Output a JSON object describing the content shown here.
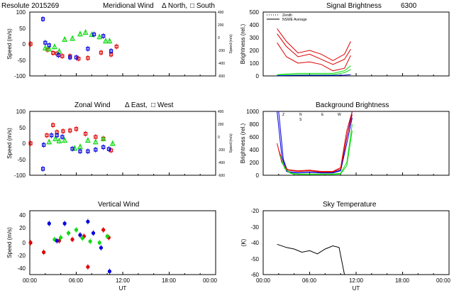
{
  "colors": {
    "red": "#e00000",
    "green": "#10dc10",
    "blue": "#0000e0",
    "black": "#000000"
  },
  "chart_data": [
    {
      "id": "meridional",
      "type": "scatter",
      "title_left": "Resolute  2015269",
      "title": "Meridional Wind",
      "legend_a": "Δ North,",
      "legend_b": "□ South",
      "ylabel": "Speed (m/s)",
      "ylabel_right": "Speed (m/s)",
      "ylim": [
        -100,
        100
      ],
      "yticks": [
        "100",
        "50",
        "0",
        "-50",
        "-100"
      ],
      "yticks_right": [
        "400",
        "200",
        "0",
        "-200",
        "-400",
        "-600"
      ],
      "xlim": [
        0,
        24
      ],
      "series": [
        {
          "color": "red",
          "marker": "square",
          "points": [
            [
              0.1,
              0
            ],
            [
              2.3,
              -18
            ],
            [
              3.0,
              -28
            ],
            [
              3.5,
              -30
            ],
            [
              4.2,
              -38
            ],
            [
              5.2,
              -38
            ],
            [
              6.3,
              -46
            ],
            [
              7.5,
              -44
            ],
            [
              9.2,
              -27
            ],
            [
              10.5,
              -33
            ],
            [
              11.2,
              -8
            ]
          ]
        },
        {
          "color": "green",
          "marker": "triangle",
          "points": [
            [
              2.0,
              -12
            ],
            [
              2.5,
              -15
            ],
            [
              3.2,
              -8
            ],
            [
              3.8,
              -22
            ],
            [
              4.5,
              15
            ],
            [
              5.5,
              18
            ],
            [
              6.5,
              32
            ],
            [
              7.2,
              37
            ],
            [
              8.0,
              30
            ],
            [
              9.0,
              23
            ],
            [
              9.8,
              10
            ],
            [
              10.3,
              10
            ]
          ]
        },
        {
          "color": "blue",
          "marker": "square",
          "points": [
            [
              1.7,
              78
            ],
            [
              2.0,
              4
            ],
            [
              2.5,
              -4
            ],
            [
              3.7,
              -35
            ],
            [
              5.2,
              -42
            ],
            [
              6.0,
              -42
            ],
            [
              7.5,
              -15
            ],
            [
              8.3,
              30
            ],
            [
              9.5,
              25
            ],
            [
              10.5,
              -22
            ]
          ]
        }
      ]
    },
    {
      "id": "signal",
      "type": "line",
      "title": "Signal Brightness",
      "title_right": "6300",
      "ylabel": "Brightness (rel.)",
      "legend": [
        "Zenith",
        "NSWE Average"
      ],
      "ylim": [
        0,
        500
      ],
      "yticks": [
        "500",
        "400",
        "300",
        "200",
        "100",
        "0"
      ],
      "xlim": [
        0,
        24
      ],
      "series": [
        {
          "color": "red",
          "x": [
            1.8,
            3.0,
            4.5,
            6.0,
            7.5,
            9.0,
            10.5,
            11.3
          ],
          "y": [
            370,
            270,
            180,
            200,
            170,
            120,
            170,
            270
          ]
        },
        {
          "color": "red",
          "x": [
            1.8,
            3.0,
            4.5,
            6.0,
            7.5,
            9.0,
            10.5,
            11.3
          ],
          "y": [
            330,
            230,
            150,
            170,
            130,
            90,
            130,
            210
          ]
        },
        {
          "color": "red",
          "x": [
            1.8,
            3.0,
            4.5,
            6.0,
            7.5,
            9.0,
            10.5,
            11.3
          ],
          "y": [
            260,
            150,
            100,
            110,
            90,
            40,
            60,
            160
          ]
        },
        {
          "color": "green",
          "x": [
            1.8,
            3.0,
            4.5,
            6.0,
            7.5,
            9.0,
            10.5,
            11.3
          ],
          "y": [
            10,
            15,
            20,
            20,
            20,
            20,
            40,
            80
          ]
        },
        {
          "color": "green",
          "x": [
            1.8,
            3.0,
            4.5,
            6.0,
            7.5,
            9.0,
            10.5,
            11.3
          ],
          "y": [
            5,
            8,
            10,
            10,
            10,
            10,
            25,
            50
          ]
        },
        {
          "color": "blue",
          "x": [
            1.8,
            3.0,
            4.5,
            6.0,
            7.5,
            9.0,
            10.5,
            11.3
          ],
          "y": [
            2,
            3,
            4,
            4,
            4,
            4,
            6,
            10
          ]
        }
      ]
    },
    {
      "id": "zonal",
      "type": "scatter",
      "title": "Zonal Wind",
      "legend_a": "Δ East,",
      "legend_b": "□ West",
      "ylabel": "Speed (m/s)",
      "ylabel_right": "Speed (m/s)",
      "ylim": [
        -100,
        100
      ],
      "yticks": [
        "100",
        "50",
        "0",
        "-50",
        "-100"
      ],
      "yticks_right": [
        "400",
        "200",
        "0",
        "-200",
        "-400",
        "-600"
      ],
      "xlim": [
        0,
        24
      ],
      "series": [
        {
          "color": "red",
          "marker": "square",
          "points": [
            [
              0.1,
              0
            ],
            [
              2.2,
              25
            ],
            [
              3.0,
              57
            ],
            [
              3.5,
              35
            ],
            [
              4.3,
              38
            ],
            [
              5.2,
              40
            ],
            [
              6.0,
              45
            ],
            [
              7.2,
              30
            ],
            [
              8.5,
              20
            ],
            [
              9.5,
              15
            ],
            [
              10.5,
              -22
            ]
          ]
        },
        {
          "color": "green",
          "marker": "triangle",
          "points": [
            [
              2.5,
              5
            ],
            [
              3.3,
              15
            ],
            [
              3.8,
              8
            ],
            [
              4.5,
              10
            ],
            [
              5.8,
              -15
            ],
            [
              6.5,
              -10
            ],
            [
              7.5,
              10
            ],
            [
              8.5,
              5
            ],
            [
              9.5,
              15
            ],
            [
              10.7,
              0
            ]
          ]
        },
        {
          "color": "blue",
          "marker": "square",
          "points": [
            [
              1.7,
              -80
            ],
            [
              1.8,
              -5
            ],
            [
              2.8,
              25
            ],
            [
              3.5,
              25
            ],
            [
              4.2,
              20
            ],
            [
              5.5,
              -17
            ],
            [
              6.5,
              -25
            ],
            [
              7.5,
              -25
            ],
            [
              8.5,
              -20
            ],
            [
              9.5,
              -12
            ],
            [
              10.2,
              -18
            ]
          ]
        }
      ]
    },
    {
      "id": "background",
      "type": "line",
      "title": "Background Brightness",
      "ylabel": "Brightness (rel.)",
      "legend": [
        "Z",
        "N",
        "S",
        "E",
        "W"
      ],
      "ylim": [
        0,
        1000
      ],
      "yticks": [
        "1000",
        "800",
        "600",
        "400",
        "200",
        "0"
      ],
      "xlim": [
        0,
        24
      ],
      "series": [
        {
          "color": "blue",
          "x": [
            1.8,
            2.4,
            3.0,
            4.5,
            6.0,
            7.5,
            9.0,
            10.0,
            10.8,
            11.5
          ],
          "y": [
            1000,
            300,
            60,
            40,
            50,
            40,
            40,
            80,
            600,
            1000
          ]
        },
        {
          "color": "blue",
          "x": [
            2.0,
            2.6,
            3.2,
            4.5,
            6.0,
            7.5,
            9.0,
            10.0,
            10.8,
            11.5
          ],
          "y": [
            1000,
            250,
            50,
            35,
            45,
            35,
            35,
            70,
            500,
            900
          ]
        },
        {
          "color": "red",
          "x": [
            1.8,
            2.4,
            3.0,
            4.5,
            6.0,
            7.5,
            9.0,
            10.0,
            10.8,
            11.5
          ],
          "y": [
            500,
            200,
            90,
            70,
            80,
            60,
            60,
            120,
            700,
            1000
          ]
        },
        {
          "color": "red",
          "x": [
            2.0,
            2.6,
            3.2,
            4.5,
            6.0,
            7.5,
            9.0,
            10.0,
            10.8,
            11.5
          ],
          "y": [
            400,
            170,
            80,
            60,
            70,
            50,
            50,
            100,
            600,
            950
          ]
        },
        {
          "color": "green",
          "x": [
            2.2,
            2.8,
            3.5,
            4.5,
            6.0,
            7.5,
            9.0,
            10.0,
            10.8,
            11.5
          ],
          "y": [
            300,
            100,
            30,
            20,
            20,
            20,
            20,
            30,
            200,
            800
          ]
        },
        {
          "color": "green",
          "x": [
            2.4,
            3.0,
            3.8,
            4.5,
            6.0,
            7.5,
            9.0,
            10.0,
            10.8,
            11.5
          ],
          "y": [
            200,
            80,
            20,
            15,
            15,
            15,
            15,
            20,
            150,
            700
          ]
        }
      ]
    },
    {
      "id": "vertical",
      "type": "scatter",
      "title": "Vertical Wind",
      "ylabel": "Speed (m/s)",
      "ylim": [
        -50,
        50
      ],
      "yticks": [
        "40",
        "20",
        "0",
        "-20",
        "-40"
      ],
      "xlim": [
        0,
        24
      ],
      "xticks": [
        "00:00",
        "06:00",
        "12:00",
        "18:00",
        "00:00"
      ],
      "xlabel": "UT",
      "series": [
        {
          "color": "red",
          "marker": "circle",
          "points": [
            [
              0.1,
              0
            ],
            [
              1.8,
              -15
            ],
            [
              3.8,
              3
            ],
            [
              5.5,
              5
            ],
            [
              6.5,
              12
            ],
            [
              7.0,
              10
            ],
            [
              7.5,
              -38
            ],
            [
              9.5,
              20
            ],
            [
              10.2,
              8
            ]
          ]
        },
        {
          "color": "green",
          "marker": "circle",
          "points": [
            [
              3.2,
              5
            ],
            [
              4.0,
              8
            ],
            [
              5.0,
              15
            ],
            [
              6.0,
              20
            ],
            [
              6.8,
              7
            ],
            [
              7.8,
              2
            ],
            [
              9.0,
              0
            ],
            [
              10.0,
              10
            ]
          ]
        },
        {
          "color": "blue",
          "marker": "circle",
          "points": [
            [
              2.5,
              30
            ],
            [
              3.5,
              3
            ],
            [
              4.5,
              30
            ],
            [
              6.5,
              12
            ],
            [
              7.5,
              33
            ],
            [
              8.2,
              15
            ],
            [
              9.2,
              -8
            ],
            [
              10.3,
              -45
            ]
          ]
        }
      ]
    },
    {
      "id": "sky",
      "type": "line",
      "title": "Sky Temperature",
      "ylabel": "(K)",
      "ylim": [
        -60,
        -20
      ],
      "yticks": [
        "-20",
        "-30",
        "-40",
        "-50",
        "-60"
      ],
      "xlim": [
        0,
        24
      ],
      "xticks": [
        "00:00",
        "06:00",
        "12:00",
        "18:00",
        "00:00"
      ],
      "xlabel": "UT",
      "series": [
        {
          "color": "black",
          "x": [
            1.8,
            3.0,
            4.0,
            5.0,
            6.0,
            7.0,
            8.0,
            9.0,
            9.8,
            10.5
          ],
          "y": [
            -41,
            -43,
            -44,
            -46,
            -45,
            -47,
            -44,
            -42,
            -43,
            -60
          ]
        }
      ]
    }
  ]
}
